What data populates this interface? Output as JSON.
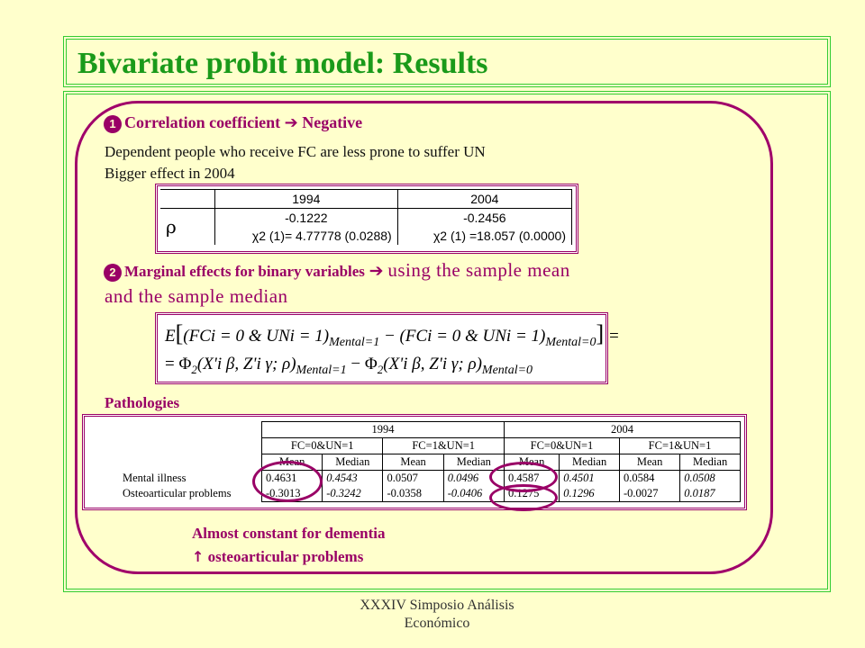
{
  "title": "Bivariate probit model: Results",
  "section1": {
    "number": "1",
    "heading": "Correlation coefficient",
    "arrow": "➔",
    "result": "Negative",
    "lines": [
      "Dependent people who receive FC are less prone to suffer UN",
      "Bigger effect in 2004"
    ]
  },
  "correlation_table": {
    "years": [
      "1994",
      "2004"
    ],
    "row_label": "ρ",
    "values": [
      "-0.1222",
      "-0.2456"
    ],
    "chi_squared": [
      "χ2 (1)= 4.77778  (0.0288)",
      "χ2 (1) =18.057  (0.0000)"
    ]
  },
  "section2": {
    "number": "2",
    "heading": "Marginal effects for binary variables",
    "arrow": "➔",
    "rest": "using the sample mean",
    "line2": "and the sample median"
  },
  "formula": {
    "line1_left": "E",
    "line1_term1": "FCi = 0 & UNi = 1",
    "line1_sub1": "Mental=1",
    "line1_term2": "FCi = 0 & UNi = 1",
    "line1_sub2": "Mental=0",
    "line2_term1": "X'i β, Z'i γ; ρ",
    "line2_sub1": "Mental=1",
    "line2_term2": "X'i β, Z'i γ; ρ",
    "line2_sub2": "Mental=0"
  },
  "pathologies_label": "Pathologies",
  "results_table": {
    "years": [
      "1994",
      "2004"
    ],
    "groups": [
      "FC=0&UN=1",
      "FC=1&UN=1",
      "FC=0&UN=1",
      "FC=1&UN=1"
    ],
    "stats": [
      "Mean",
      "Median",
      "Mean",
      "Median",
      "Mean",
      "Median",
      "Mean",
      "Median"
    ],
    "rows": [
      {
        "label": "Mental illness",
        "values": [
          "0.4631",
          "0.4543",
          "0.0507",
          "0.0496",
          "0.4587",
          "0.4501",
          "0.0584",
          "0.0508"
        ]
      },
      {
        "label": "Osteoarticular problems",
        "values": [
          "-0.3013",
          "-0.3242",
          "-0.0358",
          "-0.0406",
          "0.1275",
          "0.1296",
          "-0.0027",
          "0.0187"
        ]
      }
    ]
  },
  "conclusion": {
    "line1": "Almost constant for dementia",
    "arrow": "↑",
    "line2": "osteoarticular problems"
  },
  "footer": [
    "XXXIV Simposio Análisis",
    "Económico"
  ],
  "colors": {
    "background": "#ffffcc",
    "title": "#1a9a1a",
    "accent": "#990066",
    "frame": "#33cc33"
  }
}
